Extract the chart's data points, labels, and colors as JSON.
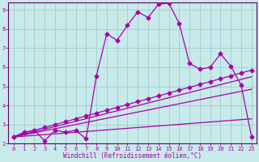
{
  "bg_color": "#c8eaea",
  "grid_color": "#a0cccc",
  "line_color": "#aa00aa",
  "spine_color": "#660066",
  "xlim": [
    -0.5,
    23.5
  ],
  "ylim": [
    2,
    9.4
  ],
  "xticks": [
    0,
    1,
    2,
    3,
    4,
    5,
    6,
    7,
    8,
    9,
    10,
    11,
    12,
    13,
    14,
    15,
    16,
    17,
    18,
    19,
    20,
    21,
    22,
    23
  ],
  "yticks": [
    2,
    3,
    4,
    5,
    6,
    7,
    8,
    9
  ],
  "xlabel": "Windchill (Refroidissement éolien,°C)",
  "series1_x": [
    0,
    1,
    2,
    3,
    4,
    5,
    6,
    7,
    8,
    9,
    10,
    11,
    12,
    13,
    14,
    15,
    16,
    17,
    18,
    19,
    20,
    21,
    22,
    23
  ],
  "series1_y": [
    2.35,
    2.6,
    2.7,
    2.15,
    2.7,
    2.6,
    2.7,
    2.25,
    5.55,
    7.75,
    7.4,
    8.2,
    8.9,
    8.6,
    9.3,
    9.35,
    8.3,
    6.2,
    5.9,
    6.0,
    6.7,
    6.05,
    5.05,
    2.35
  ],
  "series2_x": [
    0,
    1,
    2,
    3,
    4,
    5,
    6,
    7,
    8,
    9,
    10,
    11,
    12,
    13,
    14,
    15,
    16,
    17,
    18,
    19,
    20,
    21,
    22,
    23
  ],
  "series2_y": [
    2.35,
    2.55,
    2.7,
    2.85,
    3.0,
    3.15,
    3.3,
    3.45,
    3.6,
    3.75,
    3.9,
    4.05,
    4.2,
    4.35,
    4.5,
    4.65,
    4.8,
    4.95,
    5.1,
    5.25,
    5.4,
    5.55,
    5.7,
    5.85
  ],
  "series3_x": [
    0,
    23
  ],
  "series3_y": [
    2.35,
    5.5
  ],
  "series4_x": [
    0,
    23
  ],
  "series4_y": [
    2.35,
    4.85
  ],
  "series5_x": [
    0,
    23
  ],
  "series5_y": [
    2.35,
    3.3
  ],
  "marker": "D",
  "marker_size": 2.5,
  "linewidth": 0.9,
  "tick_fontsize": 5.0,
  "label_fontsize": 5.5
}
